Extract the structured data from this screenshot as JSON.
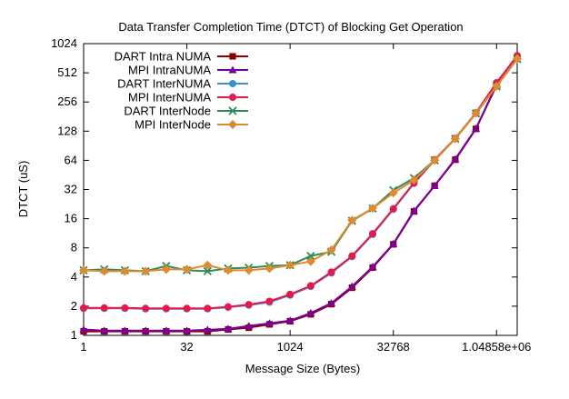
{
  "chart_data": {
    "type": "line",
    "title": "Data Transfer Completion Time (DTCT) of Blocking Get Operation",
    "xlabel": "Message Size (Bytes)",
    "ylabel": "DTCT (uS)",
    "x_scale": "log2",
    "y_scale": "log2",
    "xlim": [
      1,
      2097152
    ],
    "ylim": [
      1,
      1024
    ],
    "x_ticks": [
      1,
      32,
      1024,
      32768,
      1048576
    ],
    "x_tick_labels": [
      "1",
      "32",
      "1024",
      "32768",
      "1.04858e+06"
    ],
    "y_ticks": [
      1,
      2,
      4,
      8,
      16,
      32,
      64,
      128,
      256,
      512,
      1024
    ],
    "y_tick_labels": [
      "1",
      "2",
      "4",
      "8",
      "16",
      "32",
      "64",
      "128",
      "256",
      "512",
      "1024"
    ],
    "legend_position": "top-left",
    "grid": false,
    "x": [
      1,
      2,
      4,
      8,
      16,
      32,
      64,
      128,
      256,
      512,
      1024,
      2048,
      4096,
      8192,
      16384,
      32768,
      65536,
      131072,
      262144,
      524288,
      1048576,
      2097152
    ],
    "series": [
      {
        "name": "DART Intra NUMA",
        "color": "#8b0000",
        "marker": "square",
        "values": [
          1.1,
          1.1,
          1.1,
          1.1,
          1.1,
          1.1,
          1.1,
          1.15,
          1.2,
          1.3,
          1.4,
          1.65,
          2.1,
          3.1,
          5.0,
          8.7,
          19,
          35,
          65,
          135,
          380,
          740
        ]
      },
      {
        "name": "MPI IntraNUMA",
        "color": "#7a0099",
        "marker": "triangle",
        "values": [
          1.15,
          1.12,
          1.12,
          1.12,
          1.12,
          1.12,
          1.14,
          1.17,
          1.25,
          1.33,
          1.42,
          1.7,
          2.15,
          3.2,
          5.1,
          8.8,
          19.3,
          35,
          66,
          136,
          385,
          750
        ]
      },
      {
        "name": "DART InterNUMA",
        "color": "#3b8fd1",
        "marker": "circle",
        "values": [
          1.9,
          1.9,
          1.9,
          1.88,
          1.88,
          1.88,
          1.88,
          1.95,
          2.05,
          2.2,
          2.6,
          3.2,
          4.4,
          6.5,
          11,
          20,
          37,
          64,
          107,
          195,
          400,
          760
        ]
      },
      {
        "name": "MPI InterNUMA",
        "color": "#e5194a",
        "marker": "circle",
        "values": [
          1.92,
          1.92,
          1.92,
          1.9,
          1.9,
          1.9,
          1.9,
          1.97,
          2.08,
          2.25,
          2.65,
          3.25,
          4.5,
          6.6,
          11.2,
          20.3,
          37.5,
          65,
          108,
          198,
          405,
          770
        ]
      },
      {
        "name": "DART InterNode",
        "color": "#2e8b57",
        "marker": "x",
        "values": [
          4.7,
          4.8,
          4.7,
          4.6,
          5.2,
          4.7,
          4.6,
          4.9,
          5.0,
          5.2,
          5.3,
          6.6,
          7.3,
          15.2,
          20.4,
          31.5,
          42,
          64,
          107,
          195,
          370,
          710
        ]
      },
      {
        "name": "MPI InterNode",
        "color": "#e08a30",
        "marker": "diamond",
        "values": [
          4.7,
          4.6,
          4.6,
          4.6,
          4.8,
          4.8,
          5.3,
          4.7,
          4.7,
          4.9,
          5.3,
          5.8,
          7.6,
          15.4,
          20.5,
          29.5,
          40,
          64,
          107,
          196,
          372,
          715
        ]
      }
    ]
  }
}
